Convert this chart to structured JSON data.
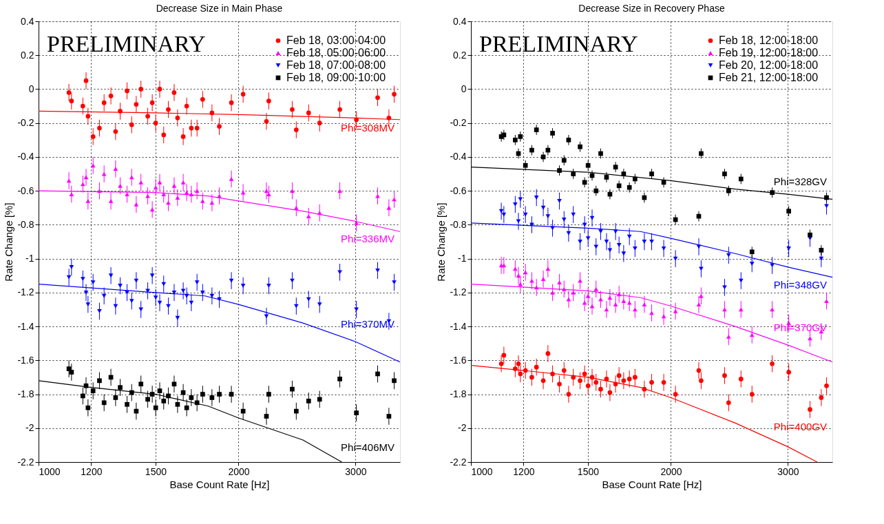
{
  "chart_data": [
    {
      "type": "scatter",
      "title": "Decrease Size in Main Phase",
      "xlabel": "Base Count Rate [Hz]",
      "ylabel": "Rate Change [%]",
      "log": "x",
      "grid": true,
      "legend": "top right",
      "xlim": [
        1000,
        3500
      ],
      "xticks": [
        1000,
        1200,
        1500,
        2000,
        3000
      ],
      "ylim": [
        -2.2,
        0.4
      ],
      "yticks": [
        -2.2,
        -2,
        -1.8,
        -1.6,
        -1.4,
        -1.2,
        -1,
        -0.8,
        -0.6,
        -0.4,
        -0.2,
        0,
        0.2,
        0.4
      ],
      "annotations": [
        "PRELIMINARY"
      ],
      "x": [
        1111,
        1121,
        1166,
        1179,
        1187,
        1208,
        1235,
        1255,
        1285,
        1306,
        1327,
        1359,
        1381,
        1403,
        1426,
        1460,
        1483,
        1501,
        1522,
        1543,
        1568,
        1600,
        1619,
        1651,
        1671,
        1698,
        1732,
        1766,
        1824,
        1871,
        1951,
        2032,
        2203,
        2221,
        2409,
        2443,
        2550,
        2649,
        2841,
        3009,
        3239,
        3368,
        3430
      ],
      "series": [
        {
          "name": "Feb 18, 03:00-04:00",
          "color": "#ff0000",
          "marker": "circle",
          "values": [
            -0.02,
            -0.07,
            -0.1,
            0.05,
            -0.16,
            -0.28,
            -0.23,
            -0.08,
            -0.04,
            -0.25,
            -0.13,
            -0.01,
            -0.21,
            -0.09,
            0,
            -0.16,
            -0.08,
            -0.2,
            0,
            -0.27,
            -0.12,
            -0.02,
            -0.17,
            -0.28,
            -0.1,
            -0.23,
            -0.23,
            -0.06,
            -0.14,
            -0.22,
            -0.08,
            -0.03,
            -0.19,
            -0.07,
            -0.12,
            -0.24,
            -0.14,
            -0.2,
            -0.12,
            -0.18,
            -0.05,
            -0.17,
            -0.03
          ],
          "errors": [
            0.05,
            0.05,
            0.05,
            0.05,
            0.05,
            0.05,
            0.05,
            0.05,
            0.05,
            0.05,
            0.05,
            0.05,
            0.05,
            0.05,
            0.05,
            0.05,
            0.05,
            0.05,
            0.05,
            0.05,
            0.05,
            0.05,
            0.05,
            0.05,
            0.05,
            0.05,
            0.05,
            0.05,
            0.05,
            0.05,
            0.05,
            0.05,
            0.05,
            0.05,
            0.05,
            0.05,
            0.05,
            0.05,
            0.05,
            0.05,
            0.05,
            0.05,
            0.05
          ]
        },
        {
          "name": "Feb 18, 05:00-06:00",
          "color": "#ff00ff",
          "marker": "triangle",
          "values": [
            -0.54,
            -0.62,
            -0.56,
            -0.52,
            -0.66,
            -0.45,
            -0.6,
            -0.5,
            -0.66,
            -0.47,
            -0.57,
            -0.62,
            -0.52,
            -0.68,
            -0.55,
            -0.63,
            -0.71,
            -0.58,
            -0.55,
            -0.62,
            -0.67,
            -0.57,
            -0.64,
            -0.55,
            -0.61,
            -0.62,
            -0.6,
            -0.66,
            -0.67,
            -0.63,
            -0.53,
            -0.61,
            -0.6,
            -0.62,
            -0.6,
            -0.7,
            -0.75,
            -0.73,
            -0.6,
            -0.79,
            -0.63,
            -0.7,
            -0.65
          ],
          "errors": [
            0.05,
            0.05,
            0.05,
            0.05,
            0.05,
            0.05,
            0.05,
            0.05,
            0.05,
            0.05,
            0.05,
            0.05,
            0.05,
            0.05,
            0.05,
            0.05,
            0.05,
            0.05,
            0.05,
            0.05,
            0.05,
            0.05,
            0.05,
            0.05,
            0.05,
            0.05,
            0.05,
            0.05,
            0.05,
            0.05,
            0.05,
            0.05,
            0.05,
            0.05,
            0.05,
            0.05,
            0.05,
            0.05,
            0.05,
            0.05,
            0.05,
            0.05,
            0.05
          ]
        },
        {
          "name": "Feb 18, 07:00-08:00",
          "color": "#0000ff",
          "marker": "triangle-down",
          "values": [
            -1.11,
            -1.05,
            -1.12,
            -1.2,
            -1.27,
            -1.14,
            -1.31,
            -1.22,
            -1.1,
            -1.28,
            -1.16,
            -1.2,
            -1.25,
            -1.13,
            -1.3,
            -1.19,
            -1.1,
            -1.23,
            -1.26,
            -1.15,
            -1.28,
            -1.2,
            -1.35,
            -1.19,
            -1.22,
            -1.26,
            -1.14,
            -1.2,
            -1.22,
            -1.24,
            -1.13,
            -1.16,
            -1.34,
            -1.16,
            -1.13,
            -1.28,
            -1.24,
            -1.27,
            -1.08,
            -1.3,
            -1.07,
            -1.37,
            -1.14
          ],
          "errors": [
            0.05,
            0.05,
            0.05,
            0.05,
            0.05,
            0.05,
            0.05,
            0.05,
            0.05,
            0.05,
            0.05,
            0.05,
            0.05,
            0.05,
            0.05,
            0.05,
            0.05,
            0.05,
            0.05,
            0.05,
            0.05,
            0.05,
            0.05,
            0.05,
            0.05,
            0.05,
            0.05,
            0.05,
            0.05,
            0.05,
            0.05,
            0.05,
            0.05,
            0.05,
            0.05,
            0.05,
            0.05,
            0.05,
            0.05,
            0.05,
            0.05,
            0.05,
            0.05
          ]
        },
        {
          "name": "Feb 18, 09:00-10:00",
          "color": "#000000",
          "marker": "square",
          "values": [
            -1.65,
            -1.67,
            -1.81,
            -1.75,
            -1.88,
            -1.78,
            -1.72,
            -1.85,
            -1.7,
            -1.82,
            -1.76,
            -1.86,
            -1.79,
            -1.9,
            -1.74,
            -1.83,
            -1.8,
            -1.88,
            -1.78,
            -1.84,
            -1.81,
            -1.74,
            -1.86,
            -1.79,
            -1.88,
            -1.82,
            -1.85,
            -1.8,
            -1.82,
            -1.8,
            -1.8,
            -1.9,
            -1.93,
            -1.8,
            -1.77,
            -1.9,
            -1.84,
            -1.83,
            -1.71,
            -1.91,
            -1.68,
            -1.93,
            -1.72
          ],
          "errors": [
            0.05,
            0.05,
            0.05,
            0.05,
            0.05,
            0.05,
            0.05,
            0.05,
            0.05,
            0.05,
            0.05,
            0.05,
            0.05,
            0.05,
            0.05,
            0.05,
            0.05,
            0.05,
            0.05,
            0.05,
            0.05,
            0.05,
            0.05,
            0.05,
            0.05,
            0.05,
            0.05,
            0.05,
            0.05,
            0.05,
            0.05,
            0.05,
            0.05,
            0.05,
            0.05,
            0.05,
            0.05,
            0.05,
            0.05,
            0.05,
            0.05,
            0.05,
            0.05
          ]
        },
        {
          "type": "line",
          "name": "Phi=308MV",
          "color": "#ff0000",
          "marker": "none",
          "x": [
            1000,
            1500,
            2000,
            3000,
            3500
          ],
          "values": [
            -0.13,
            -0.14,
            -0.15,
            -0.17,
            -0.18
          ]
        },
        {
          "type": "line",
          "name": "Phi=336MV",
          "color": "#ff00ff",
          "marker": "none",
          "x": [
            1000,
            1500,
            1800,
            2000,
            2500,
            3000,
            3500
          ],
          "values": [
            -0.6,
            -0.61,
            -0.63,
            -0.66,
            -0.72,
            -0.78,
            -0.84
          ]
        },
        {
          "type": "line",
          "name": "Phi=370MV",
          "color": "#0000ff",
          "marker": "none",
          "x": [
            1000,
            1500,
            1780,
            2000,
            2500,
            3000,
            3500
          ],
          "values": [
            -1.15,
            -1.2,
            -1.22,
            -1.27,
            -1.38,
            -1.49,
            -1.61
          ]
        },
        {
          "type": "line",
          "name": "Phi=406MV",
          "color": "#000000",
          "marker": "none",
          "x": [
            1000,
            1200,
            1500,
            1800,
            2000,
            2500,
            2860
          ],
          "values": [
            -1.72,
            -1.76,
            -1.8,
            -1.87,
            -1.94,
            -2.07,
            -2.2
          ]
        }
      ]
    },
    {
      "type": "scatter",
      "title": "Decrease Size in Recovery Phase",
      "xlabel": "Base Count Rate [Hz]",
      "ylabel": "Rate Change [%]",
      "log": "x",
      "grid": true,
      "legend": "top right",
      "xlim": [
        1000,
        3500
      ],
      "xticks": [
        1000,
        1200,
        1500,
        2000,
        3000
      ],
      "ylim": [
        -2.2,
        0.4
      ],
      "yticks": [
        -2.2,
        -2,
        -1.8,
        -1.6,
        -1.4,
        -1.2,
        -1,
        -0.8,
        -0.6,
        -0.4,
        -0.2,
        0,
        0.2,
        0.4
      ],
      "annotations": [
        "PRELIMINARY"
      ],
      "x": [
        1111,
        1121,
        1166,
        1179,
        1187,
        1208,
        1235,
        1255,
        1285,
        1306,
        1327,
        1359,
        1381,
        1403,
        1426,
        1460,
        1483,
        1501,
        1522,
        1543,
        1568,
        1600,
        1619,
        1651,
        1671,
        1698,
        1732,
        1766,
        1824,
        1871,
        1951,
        2032,
        2203,
        2221,
        2409,
        2443,
        2550,
        2649,
        2841,
        3009,
        3239,
        3368,
        3430
      ],
      "series": [
        {
          "name": "Feb 18, 12:00-18:00",
          "color": "#ff0000",
          "marker": "circle",
          "values": [
            -1.62,
            -1.57,
            -1.65,
            -1.62,
            -1.68,
            -1.66,
            -1.7,
            -1.64,
            -1.72,
            -1.56,
            -1.68,
            -1.74,
            -1.66,
            -1.8,
            -1.7,
            -1.72,
            -1.68,
            -1.75,
            -1.7,
            -1.73,
            -1.77,
            -1.71,
            -1.79,
            -1.74,
            -1.69,
            -1.72,
            -1.71,
            -1.7,
            -1.77,
            -1.73,
            -1.73,
            -1.8,
            -1.66,
            -1.72,
            -1.69,
            -1.85,
            -1.71,
            -1.8,
            -1.62,
            -1.67,
            -1.89,
            -1.82,
            -1.75
          ],
          "errors": [
            0.05,
            0.05,
            0.05,
            0.05,
            0.05,
            0.05,
            0.05,
            0.05,
            0.05,
            0.05,
            0.05,
            0.05,
            0.05,
            0.05,
            0.05,
            0.05,
            0.05,
            0.05,
            0.05,
            0.05,
            0.05,
            0.05,
            0.05,
            0.05,
            0.05,
            0.05,
            0.05,
            0.05,
            0.05,
            0.05,
            0.05,
            0.05,
            0.05,
            0.05,
            0.05,
            0.05,
            0.05,
            0.05,
            0.05,
            0.05,
            0.05,
            0.05,
            0.05
          ]
        },
        {
          "name": "Feb 19, 12:00-18:00",
          "color": "#ff00ff",
          "marker": "triangle",
          "values": [
            -1.04,
            -1.04,
            -1.06,
            -1.1,
            -1.15,
            -1.08,
            -1.13,
            -1.17,
            -1.12,
            -1.06,
            -1.2,
            -1.14,
            -1.18,
            -1.24,
            -1.2,
            -1.13,
            -1.26,
            -1.22,
            -1.28,
            -1.18,
            -1.24,
            -1.3,
            -1.23,
            -1.27,
            -1.21,
            -1.25,
            -1.26,
            -1.3,
            -1.27,
            -1.32,
            -1.34,
            -1.31,
            -1.27,
            -1.22,
            -1.3,
            -1.46,
            -1.3,
            -1.45,
            -1.3,
            -1.38,
            -1.47,
            -1.43,
            -1.25
          ],
          "errors": [
            0.05,
            0.05,
            0.05,
            0.05,
            0.05,
            0.05,
            0.05,
            0.05,
            0.05,
            0.05,
            0.05,
            0.05,
            0.05,
            0.05,
            0.05,
            0.05,
            0.05,
            0.05,
            0.05,
            0.05,
            0.05,
            0.05,
            0.05,
            0.05,
            0.05,
            0.05,
            0.05,
            0.05,
            0.05,
            0.05,
            0.05,
            0.05,
            0.05,
            0.05,
            0.05,
            0.05,
            0.05,
            0.05,
            0.05,
            0.05,
            0.05,
            0.05,
            0.05
          ]
        },
        {
          "name": "Feb 20, 12:00-18:00",
          "color": "#0000ff",
          "marker": "triangle-down",
          "values": [
            -0.72,
            -0.74,
            -0.68,
            -0.78,
            -0.65,
            -0.74,
            -0.8,
            -0.64,
            -0.7,
            -0.75,
            -0.82,
            -0.66,
            -0.77,
            -0.85,
            -0.74,
            -0.9,
            -0.8,
            -0.88,
            -0.76,
            -0.93,
            -0.84,
            -0.9,
            -0.95,
            -0.84,
            -0.92,
            -0.97,
            -0.87,
            -0.94,
            -0.9,
            -0.9,
            -0.94,
            -1,
            -0.93,
            -1.06,
            -1.17,
            -0.98,
            -1.13,
            -1.03,
            -1.04,
            -0.94,
            -0.88,
            -1,
            -0.69
          ],
          "errors": [
            0.05,
            0.05,
            0.05,
            0.05,
            0.05,
            0.05,
            0.05,
            0.05,
            0.05,
            0.05,
            0.05,
            0.05,
            0.05,
            0.05,
            0.05,
            0.05,
            0.05,
            0.05,
            0.05,
            0.05,
            0.05,
            0.05,
            0.05,
            0.05,
            0.05,
            0.05,
            0.05,
            0.05,
            0.05,
            0.05,
            0.05,
            0.05,
            0.05,
            0.05,
            0.05,
            0.05,
            0.05,
            0.05,
            0.05,
            0.05,
            0.05,
            0.05,
            0.05
          ]
        },
        {
          "name": "Feb 21, 12:00-18:00",
          "color": "#000000",
          "marker": "square",
          "values": [
            -0.28,
            -0.27,
            -0.3,
            -0.38,
            -0.28,
            -0.45,
            -0.36,
            -0.24,
            -0.4,
            -0.36,
            -0.26,
            -0.48,
            -0.42,
            -0.3,
            -0.5,
            -0.34,
            -0.55,
            -0.45,
            -0.51,
            -0.6,
            -0.38,
            -0.52,
            -0.62,
            -0.46,
            -0.57,
            -0.5,
            -0.58,
            -0.53,
            -0.64,
            -0.5,
            -0.55,
            -0.77,
            -0.75,
            -0.38,
            -0.5,
            -0.6,
            -0.53,
            -0.96,
            -0.61,
            -0.72,
            -0.86,
            -0.95,
            -0.64
          ],
          "errors": [
            0.03,
            0.03,
            0.03,
            0.03,
            0.03,
            0.03,
            0.03,
            0.03,
            0.03,
            0.03,
            0.03,
            0.03,
            0.03,
            0.03,
            0.03,
            0.03,
            0.03,
            0.03,
            0.03,
            0.03,
            0.03,
            0.03,
            0.03,
            0.03,
            0.03,
            0.03,
            0.03,
            0.03,
            0.03,
            0.03,
            0.03,
            0.03,
            0.03,
            0.03,
            0.03,
            0.03,
            0.03,
            0.03,
            0.03,
            0.03,
            0.03,
            0.03,
            0.03
          ]
        },
        {
          "type": "line",
          "name": "Phi=328GV",
          "color": "#000000",
          "marker": "none",
          "x": [
            1000,
            1500,
            2000,
            2500,
            3000,
            3500
          ],
          "values": [
            -0.46,
            -0.49,
            -0.54,
            -0.59,
            -0.62,
            -0.65
          ]
        },
        {
          "type": "line",
          "name": "Phi=348GV",
          "color": "#0000ff",
          "marker": "none",
          "x": [
            1000,
            1500,
            1800,
            2000,
            2500,
            3000,
            3500
          ],
          "values": [
            -0.79,
            -0.82,
            -0.84,
            -0.88,
            -0.97,
            -1.05,
            -1.11
          ]
        },
        {
          "type": "line",
          "name": "Phi=370GV",
          "color": "#ff00ff",
          "marker": "none",
          "x": [
            1000,
            1500,
            1800,
            2000,
            2500,
            3000,
            3500
          ],
          "values": [
            -1.15,
            -1.19,
            -1.23,
            -1.28,
            -1.4,
            -1.51,
            -1.61
          ]
        },
        {
          "type": "line",
          "name": "Phi=400GV",
          "color": "#ff0000",
          "marker": "none",
          "x": [
            1000,
            1200,
            1500,
            1800,
            2000,
            2500,
            3000,
            3320
          ],
          "values": [
            -1.63,
            -1.66,
            -1.7,
            -1.76,
            -1.82,
            -1.97,
            -2.11,
            -2.2
          ]
        }
      ]
    }
  ]
}
